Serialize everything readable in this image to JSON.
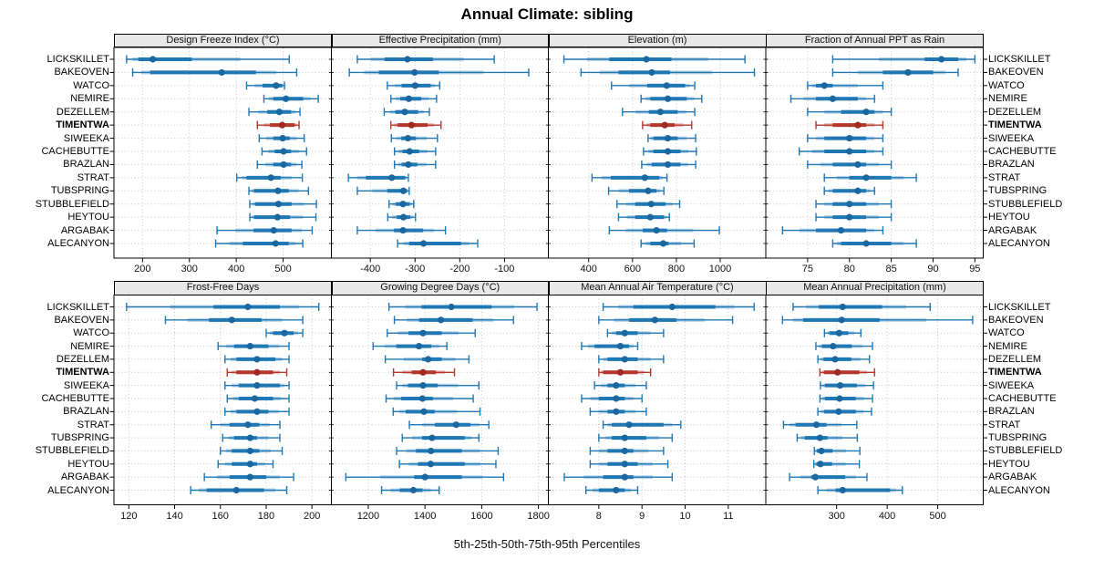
{
  "title": "Annual Climate: sibling",
  "caption": "5th-25th-50th-75th-95th Percentiles",
  "colors": {
    "blue": "#1f77b4",
    "blue_dot": "#1b679f",
    "red": "#b5362b",
    "red_dot": "#9e2a22",
    "grid": "#c6c6c6",
    "frame": "#000000",
    "strip_bg": "#e8e8e8"
  },
  "chart_data": {
    "type": "dotplot",
    "percentile_labels": [
      "5th",
      "25th",
      "50th",
      "75th",
      "95th"
    ],
    "stations": [
      "LICKSKILLET",
      "BAKEOVEN",
      "WATCO",
      "NEMIRE",
      "DEZELLEM",
      "TIMENTWA",
      "SIWEEKA",
      "CACHEBUTTE",
      "BRAZLAN",
      "STRAT",
      "TUBSPRING",
      "STUBBLEFIELD",
      "HEYTOU",
      "ARGABAK",
      "ALECANYON"
    ],
    "highlight_station": "TIMENTWA",
    "panels": [
      {
        "id": "design-freeze-index",
        "title": "Design Freeze Index (°C)",
        "row": 0,
        "col": 0,
        "xlim": [
          139,
          603
        ],
        "ticks": [
          200,
          300,
          400,
          500
        ],
        "values": [
          [
            166,
            191,
            222,
            305,
            513
          ],
          [
            179,
            216,
            369,
            442,
            529
          ],
          [
            422,
            456,
            485,
            498,
            503
          ],
          [
            459,
            479,
            506,
            543,
            575
          ],
          [
            427,
            466,
            492,
            517,
            536
          ],
          [
            445,
            472,
            498,
            524,
            534
          ],
          [
            449,
            479,
            499,
            514,
            545
          ],
          [
            455,
            482,
            501,
            517,
            550
          ],
          [
            445,
            479,
            501,
            517,
            540
          ],
          [
            401,
            422,
            474,
            495,
            541
          ],
          [
            427,
            438,
            489,
            512,
            554
          ],
          [
            429,
            440,
            490,
            518,
            571
          ],
          [
            429,
            438,
            488,
            515,
            570
          ],
          [
            359,
            437,
            480,
            518,
            562
          ],
          [
            356,
            414,
            484,
            512,
            542
          ]
        ]
      },
      {
        "id": "effective-precipitation",
        "title": "Effective Precipitation (mm)",
        "row": 0,
        "col": 1,
        "xlim": [
          -487,
          -2
        ],
        "ticks": [
          -400,
          -300,
          -200,
          -100
        ],
        "values": [
          [
            -429,
            -368,
            -317,
            -260,
            -123
          ],
          [
            -447,
            -381,
            -301,
            -247,
            -46
          ],
          [
            -362,
            -330,
            -300,
            -265,
            -245
          ],
          [
            -354,
            -333,
            -314,
            -286,
            -252
          ],
          [
            -369,
            -344,
            -323,
            -293,
            -268
          ],
          [
            -354,
            -339,
            -308,
            -272,
            -242
          ],
          [
            -353,
            -331,
            -316,
            -298,
            -250
          ],
          [
            -346,
            -328,
            -312,
            -291,
            -254
          ],
          [
            -346,
            -330,
            -315,
            -295,
            -254
          ],
          [
            -449,
            -410,
            -352,
            -322,
            -315
          ],
          [
            -429,
            -362,
            -326,
            -318,
            -313
          ],
          [
            -358,
            -343,
            -327,
            -312,
            -303
          ],
          [
            -361,
            -341,
            -326,
            -311,
            -299
          ],
          [
            -429,
            -347,
            -327,
            -282,
            -232
          ],
          [
            -339,
            -313,
            -281,
            -197,
            -160
          ]
        ]
      },
      {
        "id": "elevation",
        "title": "Elevation (m)",
        "row": 0,
        "col": 2,
        "xlim": [
          216,
          1208
        ],
        "ticks": [
          400,
          600,
          800,
          1000
        ],
        "values": [
          [
            287,
            494,
            663,
            778,
            1113
          ],
          [
            365,
            536,
            688,
            771,
            1156
          ],
          [
            504,
            667,
            756,
            840,
            884
          ],
          [
            639,
            681,
            761,
            847,
            916
          ],
          [
            554,
            674,
            727,
            806,
            884
          ],
          [
            646,
            681,
            747,
            792,
            870
          ],
          [
            671,
            695,
            761,
            806,
            888
          ],
          [
            650,
            695,
            761,
            819,
            891
          ],
          [
            642,
            688,
            761,
            819,
            888
          ],
          [
            415,
            501,
            656,
            722,
            757
          ],
          [
            491,
            584,
            671,
            709,
            743
          ],
          [
            529,
            612,
            685,
            750,
            815
          ],
          [
            536,
            612,
            681,
            743,
            768
          ],
          [
            494,
            646,
            709,
            757,
            996
          ],
          [
            639,
            681,
            740,
            764,
            881
          ]
        ]
      },
      {
        "id": "fraction-annual-ppt-rain",
        "title": "Fraction of Annual PPT as Rain",
        "row": 0,
        "col": 3,
        "xlim": [
          70,
          96
        ],
        "ticks": [
          75,
          80,
          85,
          90,
          95
        ],
        "values": [
          [
            78,
            89,
            91,
            93,
            95
          ],
          [
            78,
            84,
            87,
            90,
            93
          ],
          [
            75,
            76,
            77,
            78,
            84
          ],
          [
            73,
            76,
            78,
            81,
            83
          ],
          [
            75,
            79,
            82,
            83,
            85
          ],
          [
            76,
            78,
            81,
            82,
            84
          ],
          [
            75,
            77,
            80,
            82,
            84
          ],
          [
            74,
            77,
            80,
            82,
            84
          ],
          [
            75,
            78,
            81,
            82,
            85
          ],
          [
            77,
            80,
            82,
            85,
            88
          ],
          [
            77,
            78,
            81,
            82,
            83
          ],
          [
            76,
            78,
            80,
            82,
            85
          ],
          [
            76,
            78,
            80,
            82,
            85
          ],
          [
            72,
            76,
            79,
            82,
            84
          ],
          [
            78,
            79,
            82,
            85,
            88
          ]
        ]
      },
      {
        "id": "frost-free-days",
        "title": "Frost-Free Days",
        "row": 1,
        "col": 0,
        "xlim": [
          113.5,
          208.5
        ],
        "ticks": [
          120,
          140,
          160,
          180,
          200
        ],
        "values": [
          [
            119,
            157,
            172,
            186,
            203
          ],
          [
            136,
            155,
            165,
            178,
            196
          ],
          [
            180,
            183,
            188,
            192,
            196
          ],
          [
            159,
            166,
            173,
            181,
            190
          ],
          [
            162,
            167,
            176,
            184,
            190
          ],
          [
            163,
            167,
            176,
            183,
            189
          ],
          [
            162,
            168,
            176,
            186,
            190
          ],
          [
            163,
            168,
            175,
            183,
            190
          ],
          [
            162,
            167,
            176,
            181,
            190
          ],
          [
            156,
            164,
            172,
            177,
            186
          ],
          [
            161,
            166,
            173,
            176,
            186
          ],
          [
            160,
            165,
            173,
            177,
            187
          ],
          [
            159,
            165,
            173,
            176,
            183
          ],
          [
            153,
            164,
            173,
            180,
            192
          ],
          [
            147,
            154,
            167,
            179,
            189
          ]
        ]
      },
      {
        "id": "growing-degree-days",
        "title": "Growing Degree Days (°C)",
        "row": 1,
        "col": 1,
        "xlim": [
          1070,
          1835
        ],
        "ticks": [
          1200,
          1400,
          1600,
          1800
        ],
        "values": [
          [
            1273,
            1388,
            1493,
            1635,
            1795
          ],
          [
            1292,
            1379,
            1456,
            1568,
            1712
          ],
          [
            1267,
            1342,
            1393,
            1459,
            1577
          ],
          [
            1217,
            1299,
            1379,
            1422,
            1477
          ],
          [
            1260,
            1390,
            1411,
            1459,
            1555
          ],
          [
            1289,
            1353,
            1393,
            1438,
            1504
          ],
          [
            1300,
            1340,
            1393,
            1445,
            1590
          ],
          [
            1263,
            1316,
            1391,
            1428,
            1570
          ],
          [
            1288,
            1332,
            1396,
            1434,
            1594
          ],
          [
            1345,
            1435,
            1510,
            1560,
            1625
          ],
          [
            1320,
            1390,
            1425,
            1540,
            1590
          ],
          [
            1300,
            1368,
            1421,
            1530,
            1658
          ],
          [
            1310,
            1375,
            1420,
            1540,
            1650
          ],
          [
            1121,
            1362,
            1400,
            1530,
            1677
          ],
          [
            1247,
            1311,
            1359,
            1391,
            1450
          ]
        ]
      },
      {
        "id": "mean-annual-air-temperature",
        "title": "Mean Annual Air Temperature (°C)",
        "row": 1,
        "col": 2,
        "xlim": [
          6.83,
          11.87
        ],
        "ticks": [
          8,
          9,
          10,
          11
        ],
        "values": [
          [
            8.1,
            8.8,
            9.7,
            10.7,
            11.6
          ],
          [
            8.0,
            8.7,
            9.3,
            9.8,
            11.1
          ],
          [
            8.2,
            8.4,
            8.6,
            8.9,
            9.5
          ],
          [
            7.6,
            7.9,
            8.5,
            8.7,
            8.9
          ],
          [
            8.0,
            8.2,
            8.6,
            8.9,
            9.5
          ],
          [
            8.0,
            8.1,
            8.5,
            8.9,
            9.2
          ],
          [
            7.9,
            8.2,
            8.4,
            8.6,
            9.1
          ],
          [
            7.6,
            8.0,
            8.4,
            8.6,
            9.0
          ],
          [
            7.8,
            8.2,
            8.4,
            8.6,
            9.1
          ],
          [
            8.1,
            8.3,
            8.7,
            9.5,
            9.9
          ],
          [
            8.0,
            8.3,
            8.6,
            9.1,
            9.7
          ],
          [
            7.8,
            8.2,
            8.6,
            8.8,
            9.5
          ],
          [
            7.8,
            8.2,
            8.6,
            8.9,
            9.6
          ],
          [
            7.2,
            8.1,
            8.6,
            8.8,
            9.7
          ],
          [
            7.7,
            8.0,
            8.4,
            8.6,
            8.9
          ]
        ]
      },
      {
        "id": "mean-annual-precipitation",
        "title": "Mean Annual Precipitation (mm)",
        "row": 1,
        "col": 3,
        "xlim": [
          160,
          590
        ],
        "ticks": [
          300,
          400,
          500
        ],
        "values": [
          [
            214,
            265,
            312,
            390,
            485
          ],
          [
            193,
            234,
            310,
            385,
            569
          ],
          [
            276,
            286,
            305,
            323,
            348
          ],
          [
            259,
            271,
            293,
            330,
            371
          ],
          [
            263,
            274,
            297,
            329,
            365
          ],
          [
            267,
            275,
            302,
            345,
            375
          ],
          [
            268,
            277,
            307,
            340,
            373
          ],
          [
            267,
            277,
            306,
            338,
            371
          ],
          [
            263,
            275,
            304,
            338,
            369
          ],
          [
            195,
            219,
            260,
            280,
            340
          ],
          [
            222,
            237,
            267,
            282,
            341
          ],
          [
            256,
            261,
            270,
            292,
            346
          ],
          [
            255,
            260,
            268,
            291,
            345
          ],
          [
            207,
            250,
            258,
            317,
            360
          ],
          [
            263,
            298,
            312,
            406,
            430
          ]
        ]
      }
    ]
  }
}
